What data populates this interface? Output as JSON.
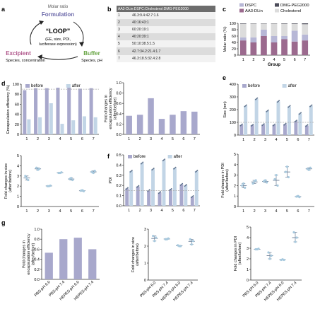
{
  "colors": {
    "before": "#a8a8cc",
    "after": "#c2d5e6",
    "dot": "#a7c9de",
    "grayBar": "#a8a8cc",
    "dspc": "#b7b7d6",
    "aa3": "#9b6a8e",
    "dmg": "#4c4c59",
    "chol": "#dcdcdc",
    "accentPurple": "#6b68a9",
    "accentPink": "#b0578b",
    "accentGreen": "#69a646",
    "axis": "#333333",
    "ref": "#aaaaaa"
  },
  "panel_labels": {
    "a": "a",
    "b": "b",
    "c": "c",
    "d": "d",
    "e": "e",
    "f": "f",
    "g": "g"
  },
  "loop": {
    "molar_ratio": "Molar ratio",
    "formulation": "Formulation",
    "loop_title": "“LOOP”",
    "loop_line1": "(EE, size, PDI,",
    "loop_line2": "luciferase expression)",
    "excipient": "Excipient",
    "excipient_sub": "Species, concentration",
    "buffer": "Buffer",
    "buffer_sub": "Species, pH"
  },
  "table": {
    "header": "AA3-DLin:DSPC:Cholesterol:DMG-PEG2000",
    "rows": [
      {
        "idx": "1",
        "val": "46.3:9.4:42.7:1.6"
      },
      {
        "idx": "2",
        "val": "40:16:43:1"
      },
      {
        "idx": "3",
        "val": "60:20:19:1"
      },
      {
        "idx": "4",
        "val": "40:20:39:1"
      },
      {
        "idx": "5",
        "val": "50:10:38.5:1.5"
      },
      {
        "idx": "6",
        "val": "42.7:34.2:21.4:1.7"
      },
      {
        "idx": "7",
        "val": "46.3:18.5:32.4:2.8"
      }
    ]
  },
  "chart_data": [
    {
      "id": "c",
      "type": "bar",
      "stacked": true,
      "categories": [
        "1",
        "2",
        "3",
        "4",
        "5",
        "6",
        "7"
      ],
      "xlabel": "Group",
      "ylabel": "Molar ratio (%)",
      "ylim": [
        0,
        100
      ],
      "yticks": [
        "0",
        "20",
        "40",
        "60",
        "80",
        "100"
      ],
      "legend_position": "top",
      "series": [
        {
          "name": "AA3-DLin",
          "values": [
            46.3,
            40,
            60,
            40,
            50,
            42.7,
            46.3
          ]
        },
        {
          "name": "DSPC",
          "values": [
            9.4,
            16,
            20,
            20,
            10,
            34.2,
            18.5
          ]
        },
        {
          "name": "Cholesterol",
          "values": [
            42.7,
            43,
            19,
            39,
            38.5,
            21.4,
            32.4
          ]
        },
        {
          "name": "DMG-PEG2000",
          "values": [
            1.6,
            1,
            1,
            1,
            1.5,
            1.7,
            2.8
          ]
        }
      ]
    },
    {
      "id": "d1",
      "type": "bar",
      "categories": [
        "1",
        "2",
        "3",
        "4",
        "5",
        "6",
        "7"
      ],
      "ylabel": "Encapsulation efficiency (%)",
      "ylim": [
        0,
        100
      ],
      "yticks": [
        "0",
        "20",
        "40",
        "60",
        "80",
        "100"
      ],
      "reference_line": 90,
      "legend_position": "top",
      "series": [
        {
          "name": "before",
          "values": [
            88,
            92,
            92,
            93,
            93,
            91,
            92
          ]
        },
        {
          "name": "after",
          "values": [
            30,
            34,
            62,
            21,
            28,
            36,
            34
          ]
        }
      ]
    },
    {
      "id": "d2",
      "type": "bar",
      "categories": [
        "1",
        "2",
        "3",
        "4",
        "5",
        "6",
        "7"
      ],
      "ylabel": "Fold changes in encapsulation efficiency (after/before)",
      "ylim": [
        0,
        1.0
      ],
      "yticks": [
        "0.0",
        "0.2",
        "0.4",
        "0.6",
        "0.8",
        "1.0"
      ],
      "values": [
        0.36,
        0.38,
        0.7,
        0.3,
        0.38,
        0.45,
        0.44
      ]
    },
    {
      "id": "e",
      "type": "bar",
      "categories": [
        "1",
        "2",
        "3",
        "4",
        "5",
        "6",
        "7"
      ],
      "ylabel": "Size (nm)",
      "ylim": [
        0,
        400
      ],
      "yticks": [
        "0",
        "100",
        "200",
        "300",
        "400"
      ],
      "reference_line": 100,
      "legend_position": "top",
      "series": [
        {
          "name": "before",
          "values": [
            80,
            78,
            82,
            80,
            85,
            110,
            75
          ]
        },
        {
          "name": "after",
          "values": [
            230,
            285,
            190,
            265,
            225,
            170,
            230
          ]
        }
      ]
    },
    {
      "id": "e2",
      "type": "scatter",
      "categories": [
        "1",
        "2",
        "3",
        "4",
        "5",
        "6",
        "7"
      ],
      "ylabel": "Fold changes in size (after/before)",
      "ylim": [
        0,
        5
      ],
      "yticks": [
        "0",
        "1",
        "2",
        "3",
        "4",
        "5"
      ],
      "points": [
        [
          3.0,
          2.8,
          2.6
        ],
        [
          3.8,
          3.6,
          3.7
        ],
        [
          2.0,
          2.0,
          2.05
        ],
        [
          3.3,
          3.3,
          3.35
        ],
        [
          2.7,
          2.8,
          2.6
        ],
        [
          1.55,
          1.6,
          1.5
        ],
        [
          3.4,
          3.3,
          3.5
        ]
      ],
      "means": [
        2.8,
        3.7,
        2.02,
        3.32,
        2.7,
        1.55,
        3.4
      ]
    },
    {
      "id": "f",
      "type": "bar",
      "categories": [
        "1",
        "2",
        "3",
        "4",
        "5",
        "6",
        "7"
      ],
      "ylabel": "PDI",
      "ylim": [
        0,
        0.5
      ],
      "yticks": [
        "0.0",
        "0.1",
        "0.2",
        "0.3",
        "0.4",
        "0.5"
      ],
      "reference_line": 0.15,
      "legend_position": "top",
      "series": [
        {
          "name": "before",
          "values": [
            0.17,
            0.19,
            0.15,
            0.13,
            0.16,
            0.21,
            0.09
          ]
        },
        {
          "name": "after",
          "values": [
            0.34,
            0.42,
            0.36,
            0.45,
            0.37,
            0.2,
            0.34
          ]
        }
      ]
    },
    {
      "id": "f2",
      "type": "scatter",
      "categories": [
        "1",
        "2",
        "3",
        "4",
        "5",
        "6",
        "7"
      ],
      "ylabel": "Fold changes in PDI (after/before)",
      "ylim": [
        0,
        5
      ],
      "yticks": [
        "0",
        "1",
        "2",
        "3",
        "4",
        "5"
      ],
      "points": [
        [
          2.0,
          2.2,
          1.8
        ],
        [
          2.2,
          2.4,
          2.5
        ],
        [
          2.4,
          2.5,
          2.3
        ],
        [
          2.6,
          3.0,
          2.0
        ],
        [
          3.3,
          3.8,
          2.8
        ],
        [
          0.95,
          1.0,
          0.9
        ],
        [
          3.6,
          3.5,
          3.7
        ]
      ],
      "means": [
        2.0,
        2.35,
        2.4,
        2.5,
        3.3,
        0.95,
        3.6
      ]
    },
    {
      "id": "g1",
      "type": "bar",
      "categories": [
        "PBS-pH 6.0",
        "PBS-pH 7.4",
        "HEPES-pH 6.0",
        "HEPES-pH 7.4"
      ],
      "ylabel": "Fold changes in encapsulation efficiency (after/before)",
      "ylim": [
        0,
        1.0
      ],
      "yticks": [
        "0.0",
        "0.2",
        "0.4",
        "0.6",
        "0.8",
        "1.0"
      ],
      "values": [
        0.53,
        0.8,
        0.83,
        0.6
      ]
    },
    {
      "id": "g2",
      "type": "scatter",
      "categories": [
        "PBS-pH 6.0",
        "PBS-pH 7.4",
        "HEPES-pH 6.0",
        "HEPES-pH 7.4"
      ],
      "ylabel": "Fold changes in size (after/before)",
      "ylim": [
        0,
        3
      ],
      "yticks": [
        "0",
        "1",
        "2",
        "3"
      ],
      "points": [
        [
          2.6,
          2.3,
          2.5
        ],
        [
          2.4,
          2.4,
          2.45
        ],
        [
          2.05,
          2.0,
          2.0
        ],
        [
          2.4,
          2.1,
          2.3
        ]
      ],
      "means": [
        2.45,
        2.42,
        2.02,
        2.28
      ]
    },
    {
      "id": "g3",
      "type": "scatter",
      "categories": [
        "PBS-pH 6.0",
        "PBS-pH 7.4",
        "HEPES-pH 6.0",
        "HEPES-pH 7.4"
      ],
      "ylabel": "Fold changes in PDI (after/before)",
      "ylim": [
        0,
        5
      ],
      "yticks": [
        "0",
        "1",
        "2",
        "3",
        "4",
        "5"
      ],
      "points": [
        [
          2.9,
          2.9,
          2.95
        ],
        [
          2.6,
          2.0,
          2.3
        ],
        [
          1.9,
          1.95,
          1.9
        ],
        [
          4.5,
          3.6,
          4.0
        ]
      ],
      "means": [
        2.9,
        2.3,
        1.92,
        4.0
      ]
    }
  ]
}
